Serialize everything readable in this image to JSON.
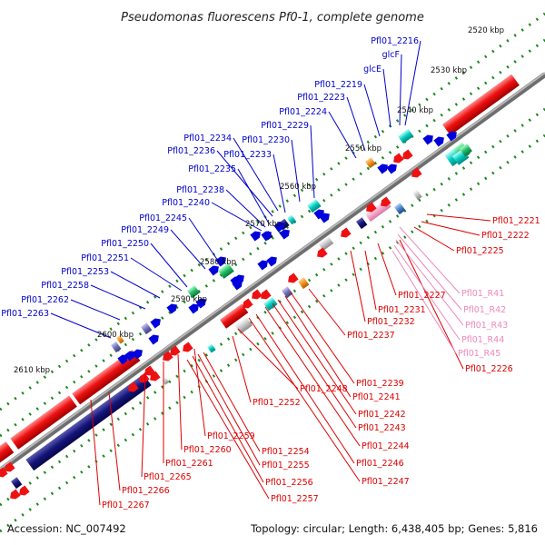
{
  "title": "Pseudomonas fluorescens Pf0-1, complete genome",
  "accession": "Accession: NC_007492",
  "topology": "Topology: circular; Length: 6,438,405 bp; Genes: 5,816",
  "colors": {
    "backbone": "#888888",
    "tick": "#1a8a1a",
    "forward_label": "#0000cc",
    "reverse_label": "#dd0000",
    "rna_label": "#ee88bb",
    "red_gene": "#ee1111",
    "blue_gene": "#0000dd",
    "navy_gene": "#14147a",
    "teal_gene": "#00ccc0",
    "pink_gene": "#f4a8cc",
    "green_gene": "#22b866"
  },
  "kbp_marks": [
    {
      "label": "2520 kbp",
      "t": 0.0
    },
    {
      "label": "2530 kbp",
      "t": 0.0
    },
    {
      "label": "2540 kbp",
      "t": 0.0
    },
    {
      "label": "2550 kbp",
      "t": 0.0
    },
    {
      "label": "2560 kbp",
      "t": 0.0
    },
    {
      "label": "2570 kbp",
      "t": 0.0
    },
    {
      "label": "2580 kbp",
      "t": 0.0
    },
    {
      "label": "2590 kbp",
      "t": 0.0
    },
    {
      "label": "2600 kbp",
      "t": 0.0
    },
    {
      "label": "2610 kbp",
      "t": 0.0
    }
  ],
  "forward_labels": [
    "Pfl01_2216",
    "glcF",
    "glcE",
    "Pfl01_2219",
    "Pfl01_2223",
    "Pfl01_2224",
    "Pfl01_2229",
    "Pfl01_2230",
    "Pfl01_2234",
    "Pfl01_2236",
    "Pfl01_2233",
    "Pfl01_2235",
    "Pfl01_2238",
    "Pfl01_2240",
    "Pfl01_2245",
    "Pfl01_2249",
    "Pfl01_2250",
    "Pfl01_2251",
    "Pfl01_2253",
    "Pfl01_2258",
    "Pfl01_2262",
    "Pfl01_2263"
  ],
  "reverse_labels_right": [
    "Pfl01_2221",
    "Pfl01_2222",
    "Pfl01_2225",
    "Pfl01_2227",
    "Pfl01_2231",
    "Pfl01_2232",
    "Pfl01_2237",
    "Pfl01_2226"
  ],
  "rna_labels": [
    "Pfl01_R41",
    "Pfl01_R42",
    "Pfl01_R43",
    "Pfl01_R44",
    "Pfl01_R45"
  ],
  "reverse_labels_bottom": [
    "Pfl01_2239",
    "Pfl01_2241",
    "Pfl01_2242",
    "Pfl01_2243",
    "Pfl01_2244",
    "Pfl01_2246",
    "Pfl01_2247",
    "Pfl01_2248",
    "Pfl01_2252",
    "Pfl01_2259",
    "Pfl01_2260",
    "Pfl01_2261",
    "Pfl01_2254",
    "Pfl01_2255",
    "Pfl01_2256",
    "Pfl01_2257",
    "Pfl01_2265",
    "Pfl01_2266",
    "Pfl01_2267"
  ]
}
